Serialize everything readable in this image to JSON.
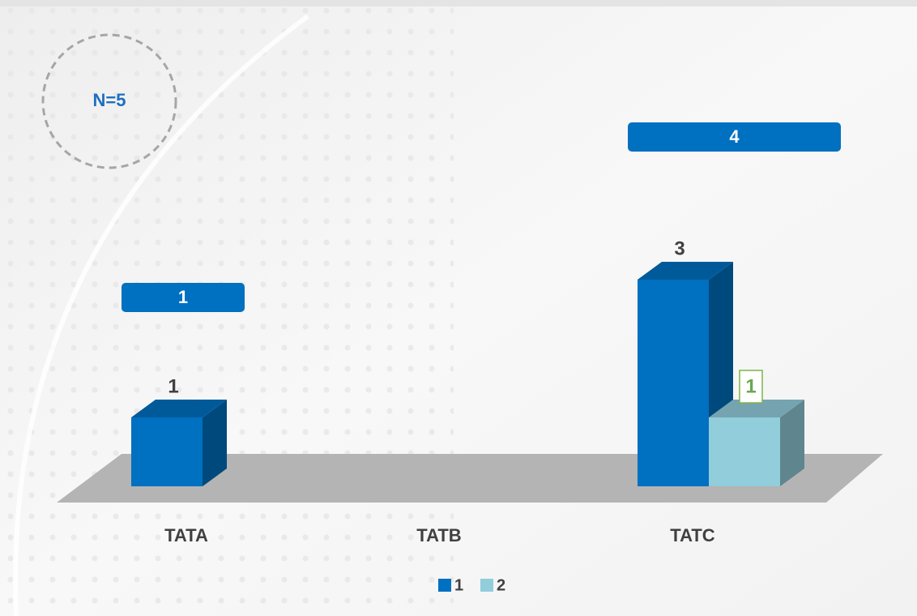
{
  "chart_data": {
    "type": "bar3d",
    "annotation": "N=5",
    "categories": [
      "TATA",
      "TATB",
      "TATC"
    ],
    "series": [
      {
        "name": "1",
        "color": "#0070c0",
        "values": [
          1,
          null,
          3
        ]
      },
      {
        "name": "2",
        "color": "#92cddc",
        "values": [
          null,
          null,
          1
        ]
      }
    ],
    "totals": [
      1,
      null,
      4
    ],
    "totals_color": "#0070c0",
    "floor_color": "#b4b4b4"
  }
}
